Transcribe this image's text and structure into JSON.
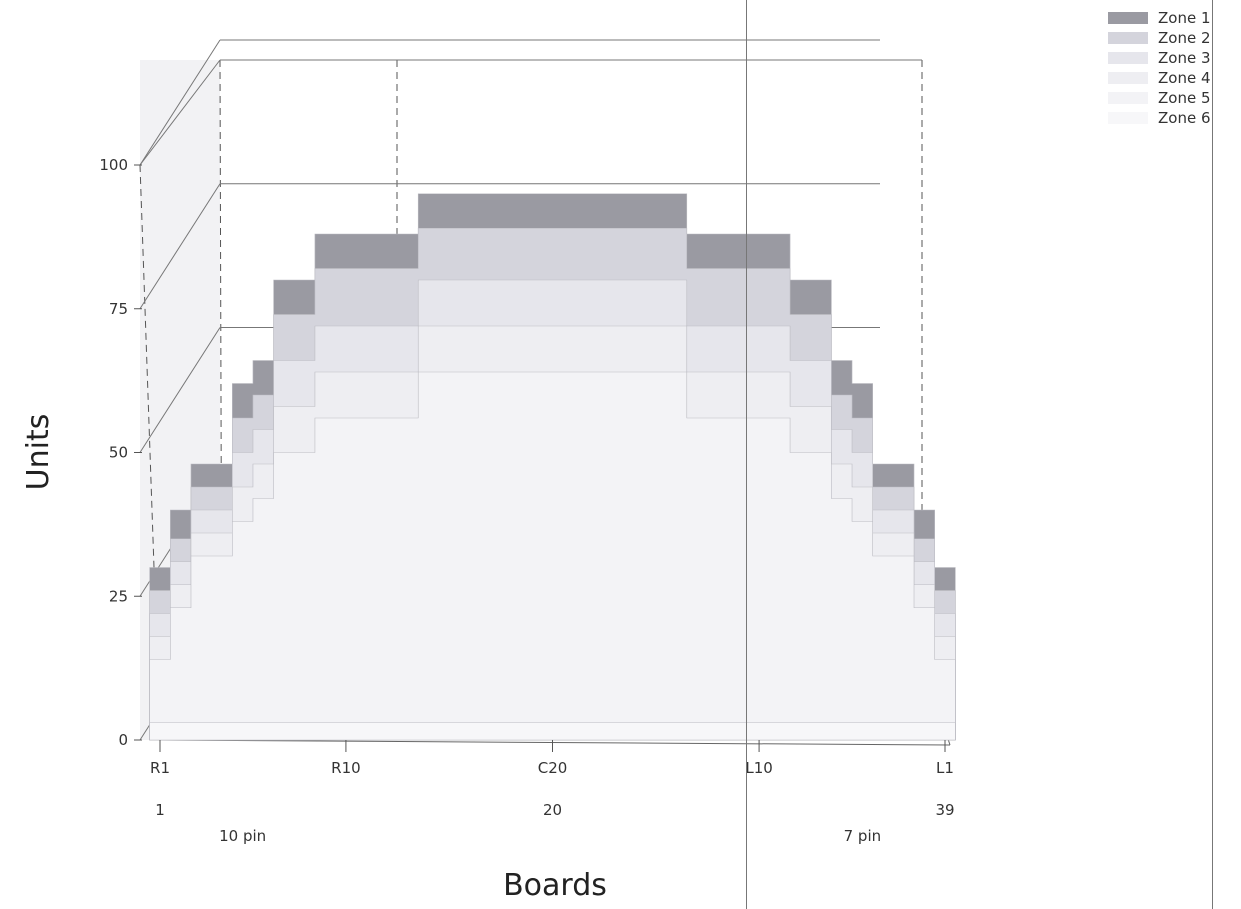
{
  "chart_data": {
    "type": "area",
    "title": "",
    "xlabel": "Boards",
    "ylabel": "Units",
    "ylim": [
      0,
      100
    ],
    "yticks": [
      0,
      25,
      50,
      75,
      100
    ],
    "x_tick_labels": [
      {
        "board": 1,
        "label": "R1"
      },
      {
        "board": 10,
        "label": "R10"
      },
      {
        "board": 20,
        "label": "C20"
      },
      {
        "board": 30,
        "label": "L10"
      },
      {
        "board": 39,
        "label": "L1"
      }
    ],
    "x_number_labels": [
      {
        "board": 1,
        "label": "1"
      },
      {
        "board": 20,
        "label": "20"
      },
      {
        "board": 39,
        "label": "39"
      }
    ],
    "annotations": [
      {
        "board": 5,
        "label": "10 pin"
      },
      {
        "board": 35,
        "label": "7 pin"
      }
    ],
    "grid": true,
    "legend_position": "top-right",
    "x": [
      1,
      2,
      3,
      4,
      5,
      6,
      7,
      8,
      9,
      10,
      11,
      12,
      13,
      14,
      15,
      16,
      17,
      18,
      19,
      20,
      21,
      22,
      23,
      24,
      25,
      26,
      27,
      28,
      29,
      30,
      31,
      32,
      33,
      34,
      35,
      36,
      37,
      38,
      39
    ],
    "series": [
      {
        "name": "Zone 1",
        "color": "#9a9aa2",
        "values": [
          30,
          40,
          48,
          48,
          62,
          66,
          80,
          80,
          88,
          88,
          88,
          88,
          88,
          95,
          95,
          95,
          95,
          95,
          95,
          95,
          95,
          95,
          95,
          95,
          95,
          95,
          88,
          88,
          88,
          88,
          88,
          80,
          80,
          66,
          62,
          48,
          48,
          40,
          30
        ]
      },
      {
        "name": "Zone 2",
        "color": "#d4d4dc",
        "values": [
          26,
          35,
          44,
          44,
          56,
          60,
          74,
          74,
          82,
          82,
          82,
          82,
          82,
          89,
          89,
          89,
          89,
          89,
          89,
          89,
          89,
          89,
          89,
          89,
          89,
          89,
          82,
          82,
          82,
          82,
          82,
          74,
          74,
          60,
          56,
          44,
          44,
          35,
          26
        ]
      },
      {
        "name": "Zone 3",
        "color": "#e6e6ec",
        "values": [
          22,
          31,
          40,
          40,
          50,
          54,
          66,
          66,
          72,
          72,
          72,
          72,
          72,
          80,
          80,
          80,
          80,
          80,
          80,
          80,
          80,
          80,
          80,
          80,
          80,
          80,
          72,
          72,
          72,
          72,
          72,
          66,
          66,
          54,
          50,
          40,
          40,
          31,
          22
        ]
      },
      {
        "name": "Zone 4",
        "color": "#eeeef2",
        "values": [
          18,
          27,
          36,
          36,
          44,
          48,
          58,
          58,
          64,
          64,
          64,
          64,
          64,
          72,
          72,
          72,
          72,
          72,
          72,
          72,
          72,
          72,
          72,
          72,
          72,
          72,
          64,
          64,
          64,
          64,
          64,
          58,
          58,
          48,
          44,
          36,
          36,
          27,
          18
        ]
      },
      {
        "name": "Zone 5",
        "color": "#f3f3f6",
        "values": [
          14,
          23,
          32,
          32,
          38,
          42,
          50,
          50,
          56,
          56,
          56,
          56,
          56,
          64,
          64,
          64,
          64,
          64,
          64,
          64,
          64,
          64,
          64,
          64,
          64,
          64,
          56,
          56,
          56,
          56,
          56,
          50,
          50,
          42,
          38,
          32,
          32,
          23,
          14
        ]
      },
      {
        "name": "Zone 6",
        "color": "#f7f7f9",
        "values": [
          3,
          3,
          3,
          3,
          3,
          3,
          3,
          3,
          3,
          3,
          3,
          3,
          3,
          3,
          3,
          3,
          3,
          3,
          3,
          3,
          3,
          3,
          3,
          3,
          3,
          3,
          3,
          3,
          3,
          3,
          3,
          3,
          3,
          3,
          3,
          3,
          3,
          3,
          3
        ]
      }
    ]
  }
}
